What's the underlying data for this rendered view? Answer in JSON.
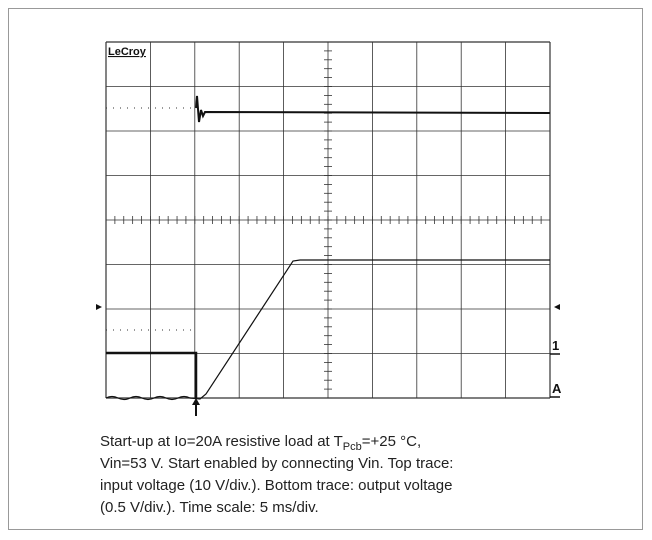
{
  "brand": "LeCroy",
  "channel_marker": "1",
  "trigger_marker": "A",
  "caption": {
    "line1_before": "Start-up at Io=20A resistive load at T",
    "line1_sub": "Pcb",
    "line1_after": "=+25 °C,",
    "line2": "Vin=53 V. Start enabled by connecting Vin. Top trace:",
    "line3": "input voltage (10 V/div.). Bottom trace: output voltage",
    "line4": "(0.5 V/div.). Time scale: 5 ms/div."
  }
}
